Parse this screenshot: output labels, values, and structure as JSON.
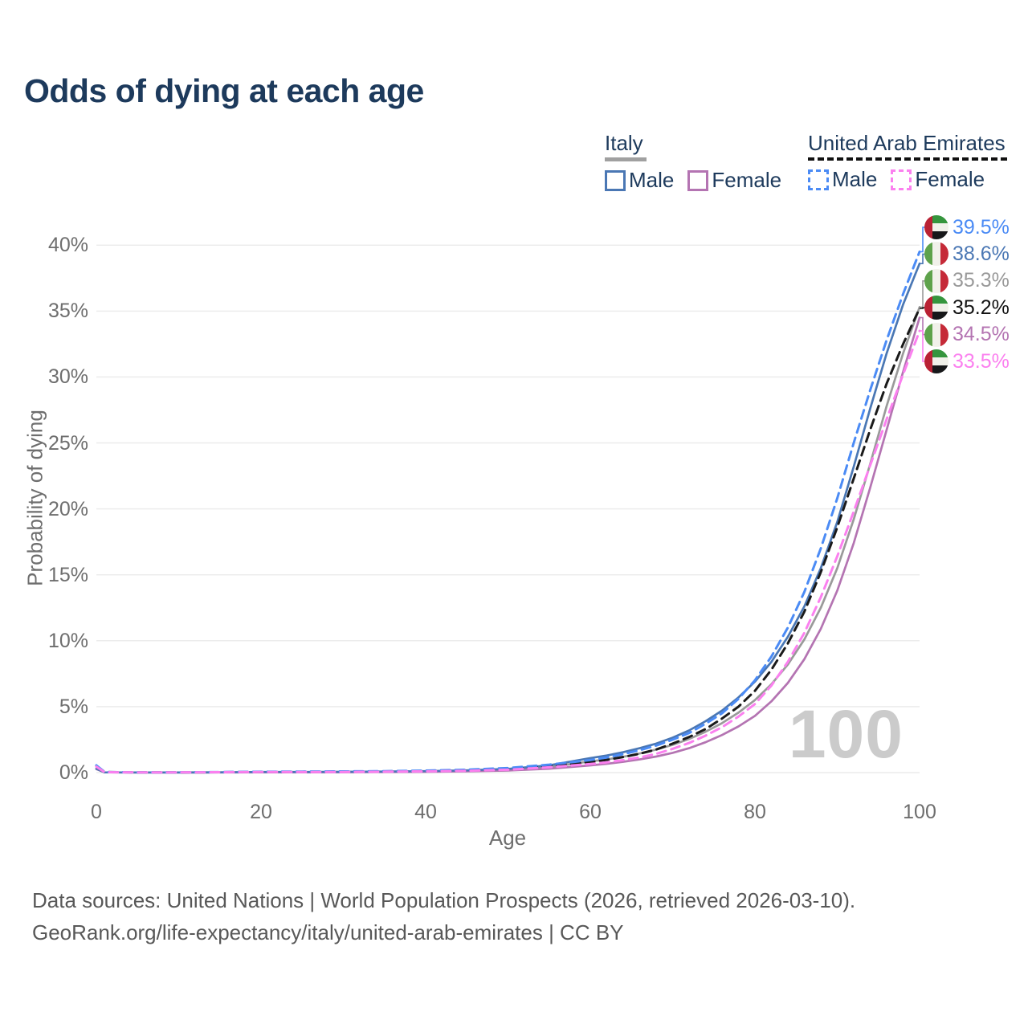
{
  "title": "Odds of dying at each age",
  "legend": {
    "groups": [
      {
        "country": "Italy",
        "underline": {
          "style": "solid",
          "color": "#a0a0a0",
          "thickness": 5
        },
        "items": [
          {
            "label": "Male",
            "color": "#4a77b4",
            "dashed": false
          },
          {
            "label": "Female",
            "color": "#b474b2",
            "dashed": false
          }
        ]
      },
      {
        "country": "United Arab Emirates",
        "underline": {
          "style": "dashed",
          "color": "#111111",
          "thickness": 4
        },
        "items": [
          {
            "label": "Male",
            "color": "#4b8bf5",
            "dashed": true
          },
          {
            "label": "Female",
            "color": "#fb80ef",
            "dashed": true
          }
        ]
      }
    ]
  },
  "chart_data": {
    "type": "line",
    "title": "Odds of dying at each age",
    "xlabel": "Age",
    "ylabel": "Probability of dying",
    "xlim": [
      0,
      100
    ],
    "ylim": [
      0,
      41.5
    ],
    "x_ticks": [
      0,
      20,
      40,
      60,
      80,
      100
    ],
    "y_ticks": [
      0,
      5,
      10,
      15,
      20,
      25,
      30,
      35,
      40
    ],
    "y_tick_suffix": "%",
    "grid": "horizontal",
    "legend_position": "top-right",
    "age_watermark": "100",
    "ages": [
      0,
      1,
      5,
      10,
      15,
      20,
      25,
      30,
      35,
      40,
      45,
      50,
      55,
      60,
      62,
      64,
      66,
      68,
      70,
      72,
      74,
      76,
      78,
      80,
      82,
      84,
      86,
      88,
      90,
      92,
      94,
      96,
      98,
      100
    ],
    "series": [
      {
        "id": "italy-both",
        "name": "Italy — Both sexes",
        "color": "#9a9a9a",
        "dash": false,
        "values": [
          0.28,
          0.02,
          0.01,
          0.01,
          0.02,
          0.03,
          0.04,
          0.04,
          0.06,
          0.09,
          0.13,
          0.22,
          0.42,
          0.85,
          1.0,
          1.2,
          1.45,
          1.75,
          2.1,
          2.55,
          3.1,
          3.75,
          4.55,
          5.5,
          6.7,
          8.2,
          10.1,
          12.5,
          15.5,
          19.2,
          23.4,
          27.8,
          31.8,
          35.3
        ]
      },
      {
        "id": "italy-female",
        "name": "Italy — Female",
        "color": "#b474b2",
        "dash": false,
        "values": [
          0.27,
          0.02,
          0.01,
          0.01,
          0.01,
          0.02,
          0.02,
          0.03,
          0.04,
          0.06,
          0.1,
          0.16,
          0.3,
          0.55,
          0.67,
          0.82,
          1.0,
          1.22,
          1.5,
          1.85,
          2.3,
          2.85,
          3.5,
          4.3,
          5.4,
          6.8,
          8.6,
          10.9,
          13.8,
          17.4,
          21.6,
          26.0,
          30.4,
          34.5
        ]
      },
      {
        "id": "italy-male",
        "name": "Italy — Male",
        "color": "#4a77b4",
        "dash": false,
        "values": [
          0.3,
          0.02,
          0.01,
          0.01,
          0.02,
          0.05,
          0.05,
          0.06,
          0.08,
          0.11,
          0.17,
          0.28,
          0.55,
          1.1,
          1.3,
          1.55,
          1.85,
          2.2,
          2.65,
          3.2,
          3.9,
          4.7,
          5.7,
          6.9,
          8.4,
          10.3,
          12.6,
          15.5,
          19.0,
          23.2,
          27.6,
          31.8,
          35.5,
          38.6
        ]
      },
      {
        "id": "uae-both",
        "name": "United Arab Emirates — Both sexes",
        "color": "#1a1a1a",
        "dash": true,
        "values": [
          0.5,
          0.04,
          0.02,
          0.02,
          0.03,
          0.05,
          0.06,
          0.07,
          0.09,
          0.12,
          0.18,
          0.28,
          0.5,
          0.8,
          0.97,
          1.18,
          1.43,
          1.75,
          2.2,
          2.7,
          3.3,
          4.1,
          5.0,
          6.2,
          7.8,
          9.8,
          12.2,
          15.2,
          18.6,
          22.3,
          26.0,
          29.5,
          32.5,
          35.2
        ]
      },
      {
        "id": "uae-male",
        "name": "United Arab Emirates — Male",
        "color": "#4b8bf5",
        "dash": true,
        "values": [
          0.55,
          0.04,
          0.02,
          0.02,
          0.04,
          0.07,
          0.08,
          0.09,
          0.11,
          0.15,
          0.22,
          0.35,
          0.6,
          0.95,
          1.15,
          1.4,
          1.7,
          2.05,
          2.5,
          3.0,
          3.7,
          4.5,
          5.6,
          7.0,
          8.8,
          11.0,
          13.7,
          17.0,
          20.8,
          25.0,
          29.0,
          32.8,
          36.3,
          39.5
        ]
      },
      {
        "id": "uae-female",
        "name": "United Arab Emirates — Female",
        "color": "#fb80ef",
        "dash": true,
        "values": [
          0.45,
          0.03,
          0.02,
          0.02,
          0.03,
          0.04,
          0.04,
          0.05,
          0.07,
          0.1,
          0.14,
          0.22,
          0.4,
          0.65,
          0.78,
          0.95,
          1.15,
          1.42,
          1.8,
          2.25,
          2.8,
          3.45,
          4.25,
          5.2,
          6.6,
          8.4,
          10.6,
          13.3,
          16.4,
          19.8,
          23.3,
          26.8,
          30.2,
          33.5
        ]
      }
    ],
    "end_labels": [
      {
        "text": "39.5%",
        "value": 39.5,
        "color": "#4b8bf5",
        "flag": "uae",
        "series_id": "uae-male"
      },
      {
        "text": "38.6%",
        "value": 38.6,
        "color": "#4a77b4",
        "flag": "italy",
        "series_id": "italy-male"
      },
      {
        "text": "35.3%",
        "value": 35.3,
        "color": "#9a9a9a",
        "flag": "italy",
        "series_id": "italy-both"
      },
      {
        "text": "35.2%",
        "value": 35.2,
        "color": "#111111",
        "flag": "uae",
        "series_id": "uae-both"
      },
      {
        "text": "34.5%",
        "value": 34.5,
        "color": "#b474b2",
        "flag": "italy",
        "series_id": "italy-female"
      },
      {
        "text": "33.5%",
        "value": 33.5,
        "color": "#fb80ef",
        "flag": "uae",
        "series_id": "uae-female"
      }
    ]
  },
  "footer": {
    "line1": "Data sources: United Nations | World Population Prospects (2026, retrieved 2026-03-10).",
    "line2": "GeoRank.org/life-expectancy/italy/united-arab-emirates | CC BY"
  }
}
